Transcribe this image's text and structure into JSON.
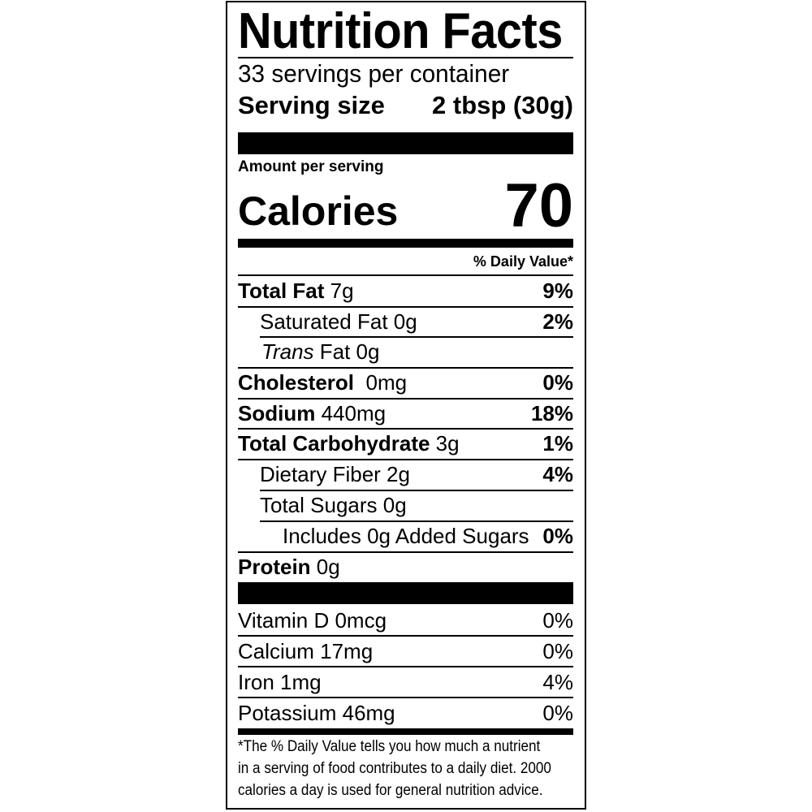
{
  "title": "Nutrition Facts",
  "servings_per_container": "33 servings per container",
  "serving_size": {
    "label": "Serving size",
    "value": "2 tbsp (30g)"
  },
  "amount_per_serving": "Amount per serving",
  "calories": {
    "label": "Calories",
    "value": "70"
  },
  "daily_value_header": "% Daily Value*",
  "nutrients": [
    {
      "name": "Total Fat",
      "amount": " 7g",
      "dv": "9%"
    },
    {
      "name": "Saturated Fat 0g",
      "amount": "",
      "dv": "2%"
    },
    {
      "name": "Trans",
      "amount": " Fat 0g",
      "dv": ""
    },
    {
      "name": "Cholesterol",
      "amount": "  0mg",
      "dv": "0%"
    },
    {
      "name": "Sodium",
      "amount": " 440mg",
      "dv": "18%"
    },
    {
      "name": "Total Carbohydrate",
      "amount": " 3g",
      "dv": "1%"
    },
    {
      "name": "Dietary Fiber 2g",
      "amount": "",
      "dv": "4%"
    },
    {
      "name": "Total Sugars 0g",
      "amount": "",
      "dv": ""
    },
    {
      "name": "Includes 0g Added Sugars",
      "amount": "",
      "dv": "0%"
    },
    {
      "name": "Protein",
      "amount": " 0g",
      "dv": ""
    }
  ],
  "vitamins": [
    {
      "name": "Vitamin D 0mcg",
      "dv": "0%"
    },
    {
      "name": "Calcium 17mg",
      "dv": "0%"
    },
    {
      "name": "Iron 1mg",
      "dv": "4%"
    },
    {
      "name": "Potassium 46mg",
      "dv": "0%"
    }
  ],
  "footnote": [
    "*The % Daily Value tells you how much a nutrient",
    "in a serving of food contributes to a daily diet. 2000",
    "calories a day is used for general nutrition advice."
  ]
}
